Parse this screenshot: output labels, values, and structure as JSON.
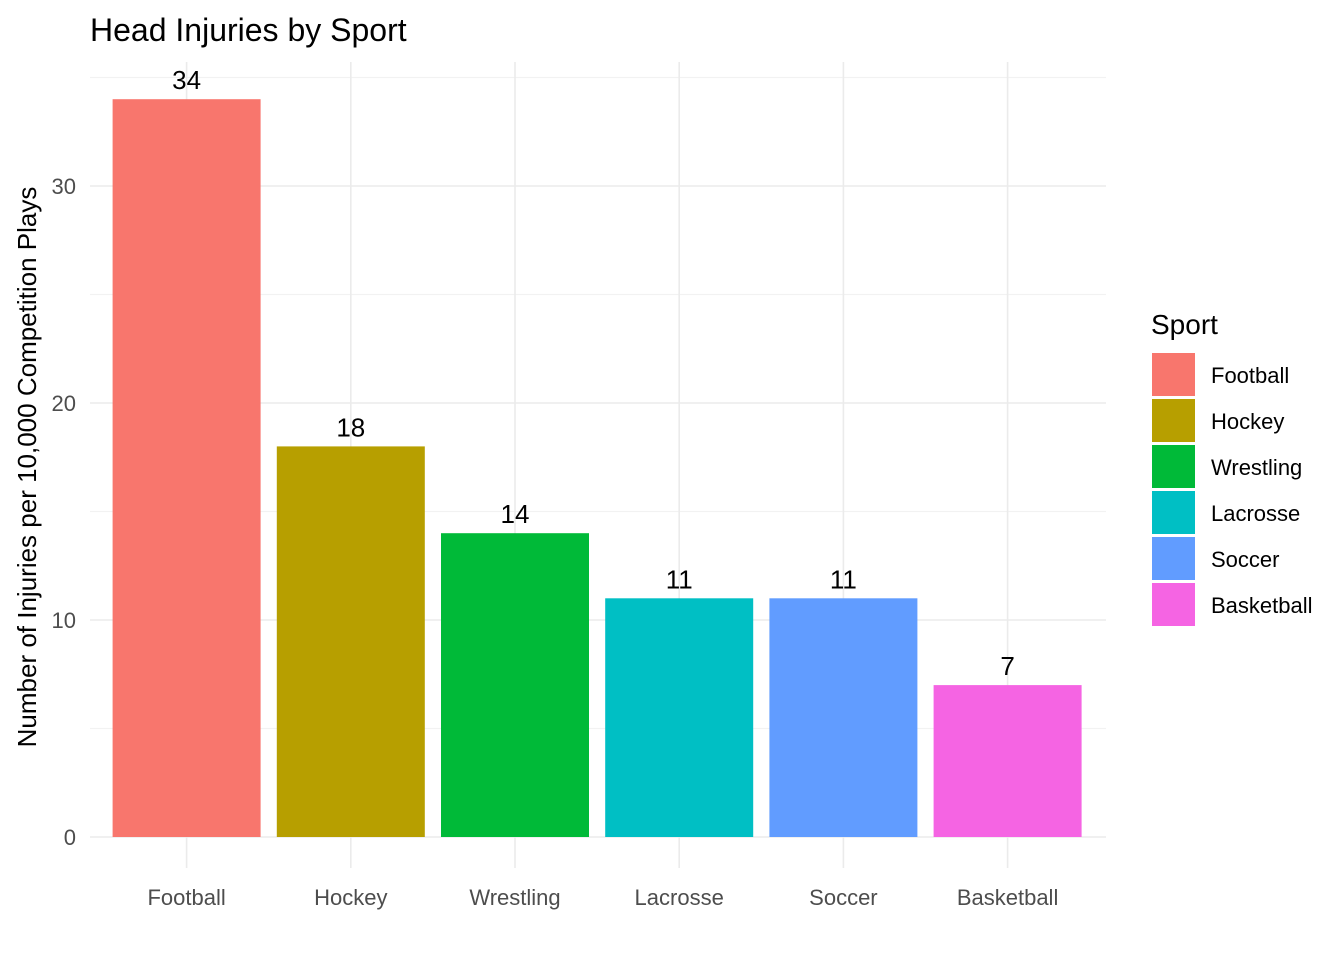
{
  "chart_data": {
    "type": "bar",
    "title": "Head Injuries by Sport",
    "xlabel": "",
    "ylabel": "Number of Injuries per 10,000 Competition Plays",
    "categories": [
      "Football",
      "Hockey",
      "Wrestling",
      "Lacrosse",
      "Soccer",
      "Basketball"
    ],
    "values": [
      34,
      18,
      14,
      11,
      11,
      7
    ],
    "data_labels": [
      "34",
      "18",
      "14",
      "11",
      "11",
      "7"
    ],
    "colors": [
      "#F8766D",
      "#B79F00",
      "#00BA38",
      "#00BFC4",
      "#619CFF",
      "#F564E3"
    ],
    "ylim": [
      0,
      35.5
    ],
    "y_ticks": [
      0,
      10,
      20,
      30
    ],
    "y_tick_labels": [
      "0",
      "10",
      "20",
      "30"
    ],
    "grid": true,
    "legend": {
      "title": "Sport",
      "position": "right",
      "items": [
        "Football",
        "Hockey",
        "Wrestling",
        "Lacrosse",
        "Soccer",
        "Basketball"
      ]
    }
  }
}
